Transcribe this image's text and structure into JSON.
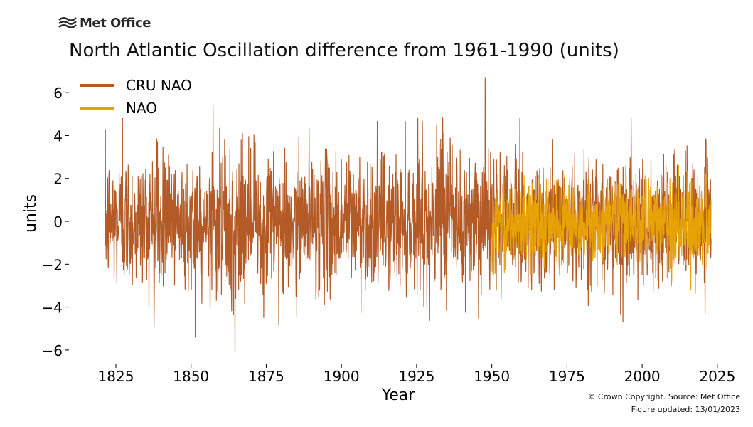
{
  "brand": {
    "logo_text": "Met Office",
    "logo_icon": "met-office-waves-icon"
  },
  "footer": {
    "copyright": "© Crown Copyright. Source: Met Office",
    "updated": "Figure updated: 13/01/2023"
  },
  "chart_data": {
    "type": "line",
    "title": "North Atlantic Oscillation difference from 1961-1990 (units)",
    "xlabel": "Year",
    "ylabel": "units",
    "xlim": [
      1812,
      2030
    ],
    "ylim": [
      -6.6,
      7.0
    ],
    "xticks": [
      1825,
      1850,
      1875,
      1900,
      1925,
      1950,
      1975,
      2000,
      2025
    ],
    "yticks": [
      -6,
      -4,
      -2,
      0,
      2,
      4,
      6
    ],
    "ytick_labels": [
      "−6",
      "−4",
      "−2",
      "0",
      "2",
      "4",
      "6"
    ],
    "grid": false,
    "legend_position": "top-left",
    "series": [
      {
        "name": "CRU NAO",
        "color": "#b35a26",
        "x_range": [
          1821.5,
          2022.9
        ],
        "sampling": "monthly",
        "value_range": [
          -6.1,
          6.7
        ],
        "notable_points": [
          {
            "x": 1864.6,
            "y": -6.1
          },
          {
            "x": 1947.8,
            "y": 6.7
          },
          {
            "x": 1851.4,
            "y": -5.4
          },
          {
            "x": 1857.3,
            "y": 5.4
          },
          {
            "x": 1827.2,
            "y": 4.8
          },
          {
            "x": 1925.4,
            "y": 4.8
          },
          {
            "x": 1993.6,
            "y": -4.7
          }
        ]
      },
      {
        "name": "NAO",
        "color": "#e6a206",
        "x_range": [
          1950.0,
          2022.9
        ],
        "sampling": "monthly",
        "value_range": [
          -3.2,
          2.6
        ],
        "notable_points": [
          {
            "x": 2016.2,
            "y": -3.2
          },
          {
            "x": 2012.1,
            "y": 2.6
          }
        ]
      }
    ]
  }
}
